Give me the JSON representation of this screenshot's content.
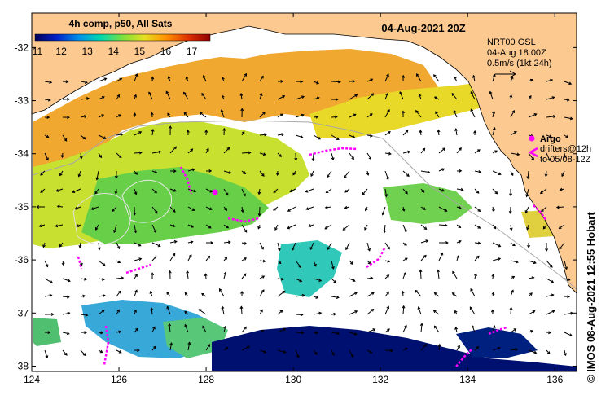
{
  "header": {
    "product_title": "4h comp, p50, All Sats",
    "date_title": "04-Aug-2021 20Z"
  },
  "colorbar": {
    "tick_labels": [
      "11",
      "12",
      "13",
      "14",
      "15",
      "16",
      "17"
    ],
    "min": 11,
    "max": 17.7,
    "colors": [
      "#00005a",
      "#0022c8",
      "#0090e8",
      "#00d8b0",
      "#7ce040",
      "#e8e020",
      "#ff9000",
      "#e03000",
      "#900000"
    ]
  },
  "current_legend": {
    "source": "NRT00 GSL",
    "time": "04-Aug 18:00Z",
    "scale": "0.5m/s (1kt 24h)"
  },
  "float_legend": {
    "argo_label": "Argo",
    "drifters_line1": "drifters@12h",
    "drifters_line2": "to 05/08-12Z",
    "symbol_color": "#ff00ff"
  },
  "credit": "© IMOS 08-Aug-2021 12:55 Hobart",
  "axes": {
    "x_ticks": [
      "124",
      "126",
      "128",
      "130",
      "132",
      "134",
      "136"
    ],
    "y_ticks": [
      "-32",
      "-33",
      "-34",
      "-35",
      "-36",
      "-37",
      "-38"
    ],
    "x_range": [
      124,
      136.5
    ],
    "y_range": [
      -38.1,
      -31.35
    ]
  },
  "colors": {
    "land": "#fcc990",
    "cloud_mask": "#ffffff",
    "vector": "#000000",
    "bathymetry": "#a8a8a8"
  }
}
